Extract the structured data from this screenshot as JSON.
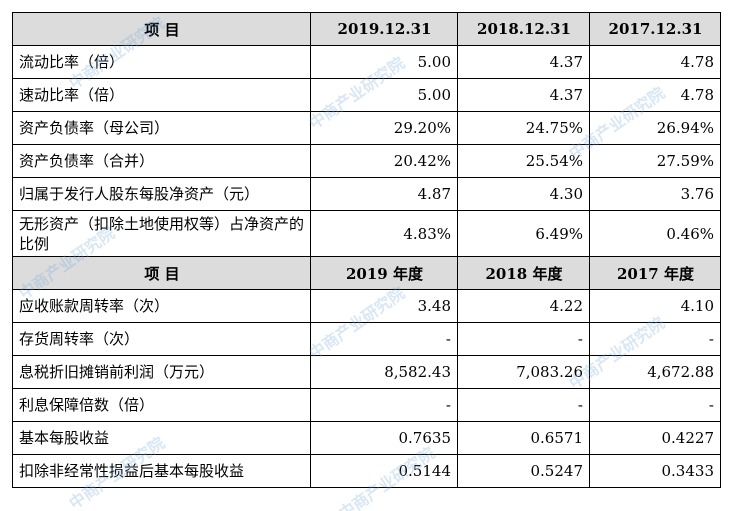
{
  "table": {
    "header1": {
      "item": "项 目",
      "y1": "2019.12.31",
      "y2": "2018.12.31",
      "y3": "2017.12.31"
    },
    "section1": [
      {
        "label": "流动比率（倍）",
        "v1": "5.00",
        "v2": "4.37",
        "v3": "4.78"
      },
      {
        "label": "速动比率（倍）",
        "v1": "5.00",
        "v2": "4.37",
        "v3": "4.78"
      },
      {
        "label": "资产负债率（母公司）",
        "v1": "29.20%",
        "v2": "24.75%",
        "v3": "26.94%"
      },
      {
        "label": "资产负债率（合并）",
        "v1": "20.42%",
        "v2": "25.54%",
        "v3": "27.59%"
      },
      {
        "label": "归属于发行人股东每股净资产（元）",
        "v1": "4.87",
        "v2": "4.30",
        "v3": "3.76"
      },
      {
        "label": "无形资产（扣除土地使用权等）占净资产的比例",
        "v1": "4.83%",
        "v2": "6.49%",
        "v3": "0.46%"
      }
    ],
    "header2": {
      "item": "项 目",
      "y1": "2019 年度",
      "y2": "2018 年度",
      "y3": "2017 年度"
    },
    "section2": [
      {
        "label": "应收账款周转率（次）",
        "v1": "3.48",
        "v2": "4.22",
        "v3": "4.10"
      },
      {
        "label": "存货周转率（次）",
        "v1": "-",
        "v2": "-",
        "v3": "-"
      },
      {
        "label": "息税折旧摊销前利润（万元）",
        "v1": "8,582.43",
        "v2": "7,083.26",
        "v3": "4,672.88"
      },
      {
        "label": "利息保障倍数（倍）",
        "v1": "-",
        "v2": "-",
        "v3": "-"
      },
      {
        "label": "基本每股收益",
        "v1": "0.7635",
        "v2": "0.6571",
        "v3": "0.4227"
      },
      {
        "label": "扣除非经常性损益后基本每股收益",
        "v1": "0.5144",
        "v2": "0.5247",
        "v3": "0.3433"
      }
    ]
  },
  "watermark": {
    "text": "中商产业研究院",
    "color": "#78aadc"
  }
}
